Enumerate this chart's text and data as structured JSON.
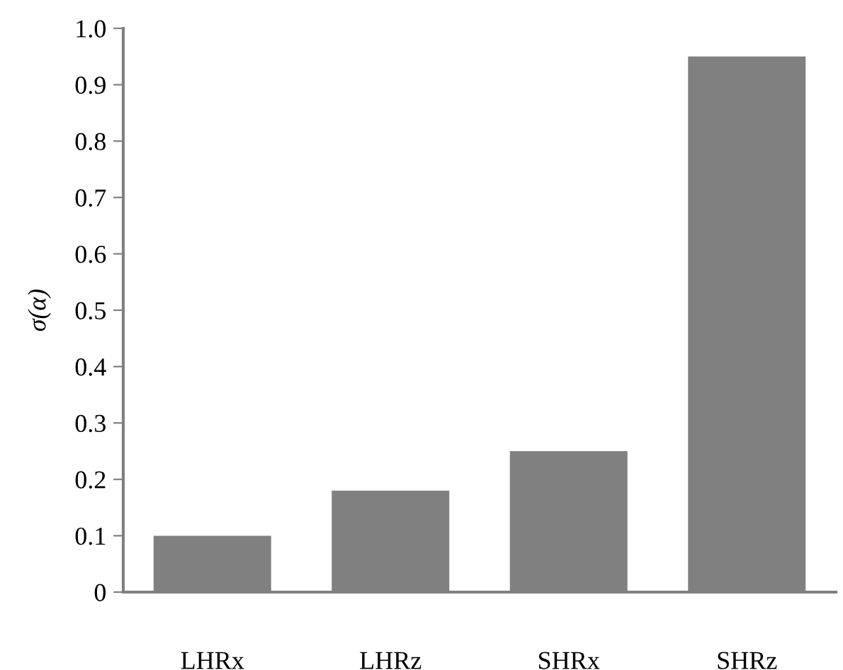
{
  "chart_data": {
    "type": "bar",
    "categories": [
      "LHRx",
      "LHRz",
      "SHRx",
      "SHRz"
    ],
    "values": [
      0.1,
      0.18,
      0.25,
      0.95
    ],
    "color": "#808080",
    "ylabel": "σ(α)",
    "ylim": [
      0,
      1.0
    ],
    "yticks": [
      0,
      0.1,
      0.2,
      0.3,
      0.4,
      0.5,
      0.6,
      0.7,
      0.8,
      0.9,
      {
        "value": 1.0,
        "label": "1.0"
      }
    ],
    "grid": false
  }
}
